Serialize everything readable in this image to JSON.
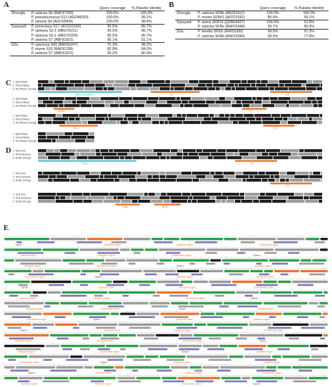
{
  "panel_letters": [
    "A",
    "B",
    "C",
    "D",
    "E"
  ],
  "table_a": {
    "headers": [
      "",
      "",
      "Query coverage",
      "% Paiwise Identity"
    ],
    "groups": [
      {
        "name": "Zhongly",
        "rows": [
          {
            "species": "P. salicina Sb (BAF47266)",
            "coverage": "100.0%",
            "identity": "100.0%"
          },
          {
            "species": "P. pseudocerasus S13 (ADZ48269)",
            "coverage": "100.0%",
            "identity": "99.1%"
          },
          {
            "species": "P. simonii S4 (ACF93904)",
            "coverage": "100.0%",
            "identity": "98.4%"
          }
        ]
      },
      {
        "name": "Sanyueli",
        "rows": [
          {
            "species": "P. armeniaca S17 (ACD31530)",
            "coverage": "90.5%",
            "identity": "86.7%"
          },
          {
            "species": "P. spinosa S3-2 (ABG76211)",
            "coverage": "90.5%",
            "identity": "86.7%"
          },
          {
            "species": "P. spinosa S3-1 (ABG76209)",
            "coverage": "90.5%",
            "identity": "86.7%"
          },
          {
            "species": "P. salicina S7 (ABF61821)",
            "coverage": "95.1%",
            "identity": "81.1%"
          }
        ]
      },
      {
        "name": "ZGL",
        "rows": [
          {
            "species": "P. speciosa S06 (BAF56247)",
            "coverage": "75.3%",
            "identity": "98.2%"
          },
          {
            "species": "P. mume S10 (BAF91158)",
            "coverage": "82.8%",
            "identity": "84.0%"
          },
          {
            "species": "P. salicina S7 (ABF61821)",
            "coverage": "95.2%",
            "identity": "80.3%"
          }
        ]
      }
    ]
  },
  "table_b": {
    "headers": [
      "",
      "",
      "Query coverage",
      "% Paiwise Identity"
    ],
    "groups": [
      {
        "name": "Zhongly",
        "rows": [
          {
            "species": "P. salicina SFBb (AB252412)",
            "coverage": "100.0%",
            "identity": "100.0%"
          },
          {
            "species": "P. mume SFB41 (AFP21692)",
            "coverage": "85.9%",
            "identity": "99.1%"
          }
        ]
      },
      {
        "name": "Sanyueli",
        "rows": [
          {
            "species": "P. dulcis SFB19 (QDB04837)",
            "coverage": "100.0%",
            "identity": "62.8%"
          },
          {
            "species": "P. salicina SFBe (BAF91849)",
            "coverage": "99.7%",
            "identity": "80.9%"
          }
        ]
      },
      {
        "name": "ZGL",
        "rows": [
          {
            "species": "P. tenella SFB5 (AIW01089)",
            "coverage": "99.5%",
            "identity": "97.3%"
          },
          {
            "species": "P. salicina SFBb (BAF91849)",
            "coverage": "99.5%",
            "identity": "77.8%"
          }
        ]
      }
    ]
  },
  "panel_c": {
    "blocks": [
      {
        "seq_labels": [
          "1. Sgl-RNase",
          "2. Ssny-RNase",
          "3. Sb-RNase Zhongli"
        ],
        "features": [
          "Signal peptide",
          "C1",
          "C2"
        ]
      },
      {
        "seq_labels": [
          "1. Sgl-RNase",
          "2. Ssny-RNase",
          "3. Sb-RNase Zhongli"
        ],
        "features": [
          "RHV",
          "C3"
        ]
      },
      {
        "seq_labels": [
          "1. Sgl-RNase",
          "2. Ssny-RNase",
          "3. Sb-RNase Zhongli"
        ],
        "features": [
          "RC4",
          "C5"
        ]
      },
      {
        "seq_labels": [
          "1. Sgl-RNase",
          "2. Ssny-RNase",
          "3. Sb-RNase Zhongli"
        ],
        "features": []
      }
    ]
  },
  "panel_d": {
    "blocks": [
      {
        "seq_labels": [
          "1. SFB ZGL",
          "2. SFB Sanyueli",
          "3. SFBb Zhongli"
        ],
        "features": [
          "Fbox",
          "V1"
        ]
      },
      {
        "seq_labels": [
          "1. SFB ZGL",
          "2. SFB Sanyueli",
          "3. SFBb Zhongli"
        ],
        "features": [
          "V2"
        ]
      },
      {
        "seq_labels": [
          "1. SFB ZGL",
          "2. SFB Sanyueli",
          "3. SFBb Zhongli"
        ],
        "features": [
          "HVa",
          "HVb"
        ]
      }
    ]
  },
  "panel_e": {
    "feature_labels": [
      "Spacer",
      "Upstream region",
      "Intergenic region",
      "Downstream region"
    ],
    "colors": {
      "green": "#2e9e4c",
      "grey": "#9a9a9a",
      "purple": "#7d78b8",
      "orange": "#e8752d",
      "teal": "#5bc1c9",
      "dark": "#1a1a1a"
    }
  }
}
